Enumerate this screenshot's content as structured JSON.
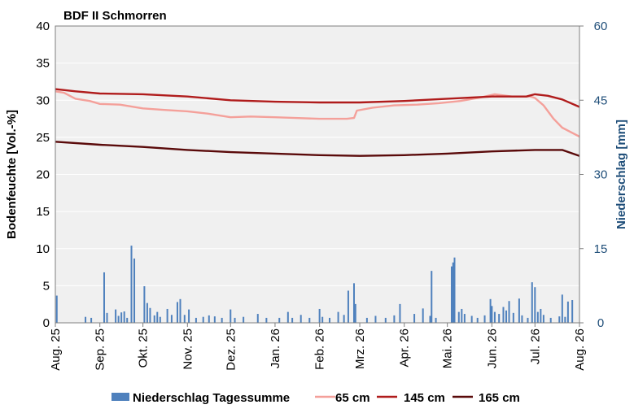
{
  "chart_data": {
    "type": "line",
    "title": "BDF II Schmorren",
    "ylabel": "Bodenfeuchte [Vol.-%]",
    "y2label": "Niederschlag [mm]",
    "ylim": [
      0,
      40
    ],
    "y2lim": [
      0,
      60
    ],
    "yticks": [
      "0",
      "5",
      "10",
      "15",
      "20",
      "25",
      "30",
      "35",
      "40"
    ],
    "y2ticks": [
      "0",
      "15",
      "30",
      "45",
      "60"
    ],
    "xlim": [
      "2025-08-01",
      "2026-08-01"
    ],
    "xticks": [
      {
        "date": "2025-08-01",
        "label": "Aug. 25"
      },
      {
        "date": "2025-09-01",
        "label": "Sep. 25"
      },
      {
        "date": "2025-10-01",
        "label": "Okt. 25"
      },
      {
        "date": "2025-11-01",
        "label": "Nov. 25"
      },
      {
        "date": "2025-12-01",
        "label": "Dez. 25"
      },
      {
        "date": "2026-01-01",
        "label": "Jan. 26"
      },
      {
        "date": "2026-02-01",
        "label": "Feb. 26"
      },
      {
        "date": "2026-03-01",
        "label": "Mrz. 26"
      },
      {
        "date": "2026-04-01",
        "label": "Apr. 26"
      },
      {
        "date": "2026-05-01",
        "label": "Mai. 26"
      },
      {
        "date": "2026-06-01",
        "label": "Jun. 26"
      },
      {
        "date": "2026-07-01",
        "label": "Jul. 26"
      },
      {
        "date": "2026-08-01",
        "label": "Aug. 26"
      }
    ],
    "grid": true,
    "legend_position": "bottom",
    "colors": {
      "plot_bg": "#f0f0f0",
      "grid": "#ffffff",
      "bars": "#4f81bd",
      "right_axis_text": "#1f4e79"
    },
    "series": [
      {
        "name": "Niederschlag Tagessumme",
        "type": "bar",
        "axis": "right",
        "color": "#4f81bd",
        "points": [
          [
            "2025-08-02",
            5.5
          ],
          [
            "2025-08-22",
            1.2
          ],
          [
            "2025-08-26",
            1.0
          ],
          [
            "2025-09-04",
            10.2
          ],
          [
            "2025-09-06",
            2.0
          ],
          [
            "2025-09-12",
            2.7
          ],
          [
            "2025-09-14",
            1.4
          ],
          [
            "2025-09-16",
            2.1
          ],
          [
            "2025-09-18",
            2.3
          ],
          [
            "2025-09-20",
            1.0
          ],
          [
            "2025-09-23",
            15.6
          ],
          [
            "2025-09-25",
            13.0
          ],
          [
            "2025-10-02",
            7.4
          ],
          [
            "2025-10-04",
            4.0
          ],
          [
            "2025-10-06",
            3.0
          ],
          [
            "2025-10-09",
            1.5
          ],
          [
            "2025-10-11",
            2.2
          ],
          [
            "2025-10-13",
            1.2
          ],
          [
            "2025-10-18",
            2.8
          ],
          [
            "2025-10-21",
            1.6
          ],
          [
            "2025-10-25",
            4.2
          ],
          [
            "2025-10-27",
            4.8
          ],
          [
            "2025-10-30",
            1.6
          ],
          [
            "2025-11-02",
            2.7
          ],
          [
            "2025-11-07",
            1.0
          ],
          [
            "2025-11-12",
            1.2
          ],
          [
            "2025-11-16",
            1.5
          ],
          [
            "2025-11-20",
            1.3
          ],
          [
            "2025-11-25",
            1.0
          ],
          [
            "2025-12-01",
            2.7
          ],
          [
            "2025-12-04",
            1.0
          ],
          [
            "2025-12-10",
            1.2
          ],
          [
            "2025-12-20",
            1.8
          ],
          [
            "2025-12-26",
            1.0
          ],
          [
            "2026-01-04",
            1.0
          ],
          [
            "2026-01-10",
            2.2
          ],
          [
            "2026-01-13",
            1.0
          ],
          [
            "2026-01-19",
            1.6
          ],
          [
            "2026-01-25",
            1.0
          ],
          [
            "2026-02-01",
            2.8
          ],
          [
            "2026-02-03",
            1.2
          ],
          [
            "2026-02-08",
            1.0
          ],
          [
            "2026-02-14",
            2.2
          ],
          [
            "2026-02-18",
            1.6
          ],
          [
            "2026-02-21",
            6.5
          ],
          [
            "2026-02-25",
            8.0
          ],
          [
            "2026-02-26",
            3.8
          ],
          [
            "2026-03-06",
            1.0
          ],
          [
            "2026-03-12",
            1.4
          ],
          [
            "2026-03-19",
            1.0
          ],
          [
            "2026-03-25",
            1.5
          ],
          [
            "2026-03-29",
            3.8
          ],
          [
            "2026-04-08",
            1.8
          ],
          [
            "2026-04-14",
            2.9
          ],
          [
            "2026-04-19",
            1.4
          ],
          [
            "2026-04-20",
            10.5
          ],
          [
            "2026-04-23",
            1.0
          ],
          [
            "2026-05-04",
            11.4
          ],
          [
            "2026-05-05",
            12.2
          ],
          [
            "2026-05-06",
            13.2
          ],
          [
            "2026-05-09",
            2.2
          ],
          [
            "2026-05-11",
            2.8
          ],
          [
            "2026-05-13",
            1.8
          ],
          [
            "2026-05-18",
            1.4
          ],
          [
            "2026-05-22",
            1.0
          ],
          [
            "2026-05-27",
            1.5
          ],
          [
            "2026-05-31",
            4.8
          ],
          [
            "2026-06-01",
            3.4
          ],
          [
            "2026-06-03",
            2.2
          ],
          [
            "2026-06-06",
            1.8
          ],
          [
            "2026-06-09",
            3.2
          ],
          [
            "2026-06-11",
            2.5
          ],
          [
            "2026-06-13",
            4.4
          ],
          [
            "2026-06-16",
            2.0
          ],
          [
            "2026-06-20",
            4.9
          ],
          [
            "2026-06-22",
            1.5
          ],
          [
            "2026-06-26",
            1.0
          ],
          [
            "2026-06-29",
            8.2
          ],
          [
            "2026-07-01",
            7.2
          ],
          [
            "2026-07-03",
            2.2
          ],
          [
            "2026-07-05",
            2.8
          ],
          [
            "2026-07-07",
            1.6
          ],
          [
            "2026-07-12",
            1.0
          ],
          [
            "2026-07-18",
            1.3
          ],
          [
            "2026-07-20",
            5.7
          ],
          [
            "2026-07-22",
            1.2
          ],
          [
            "2026-07-24",
            4.3
          ],
          [
            "2026-07-27",
            4.6
          ]
        ]
      },
      {
        "name": "65 cm",
        "type": "line",
        "axis": "left",
        "color": "#f4a09a",
        "points": [
          [
            "2025-08-01",
            31.2
          ],
          [
            "2025-08-07",
            31.0
          ],
          [
            "2025-08-15",
            30.2
          ],
          [
            "2025-08-25",
            29.9
          ],
          [
            "2025-09-01",
            29.5
          ],
          [
            "2025-09-15",
            29.4
          ],
          [
            "2025-10-01",
            28.9
          ],
          [
            "2025-10-15",
            28.7
          ],
          [
            "2025-11-01",
            28.5
          ],
          [
            "2025-11-15",
            28.2
          ],
          [
            "2025-12-01",
            27.7
          ],
          [
            "2025-12-15",
            27.8
          ],
          [
            "2026-01-01",
            27.7
          ],
          [
            "2026-01-15",
            27.6
          ],
          [
            "2026-02-01",
            27.5
          ],
          [
            "2026-02-20",
            27.5
          ],
          [
            "2026-02-25",
            27.6
          ],
          [
            "2026-02-27",
            28.6
          ],
          [
            "2026-03-10",
            29.0
          ],
          [
            "2026-03-25",
            29.3
          ],
          [
            "2026-04-10",
            29.4
          ],
          [
            "2026-04-25",
            29.6
          ],
          [
            "2026-05-10",
            29.9
          ],
          [
            "2026-05-25",
            30.4
          ],
          [
            "2026-06-03",
            30.8
          ],
          [
            "2026-06-15",
            30.5
          ],
          [
            "2026-06-28",
            30.5
          ],
          [
            "2026-07-01",
            30.3
          ],
          [
            "2026-07-07",
            29.3
          ],
          [
            "2026-07-14",
            27.5
          ],
          [
            "2026-07-20",
            26.3
          ],
          [
            "2026-07-27",
            25.6
          ],
          [
            "2026-08-01",
            25.1
          ]
        ]
      },
      {
        "name": "145 cm",
        "type": "line",
        "axis": "left",
        "color": "#b01c1c",
        "points": [
          [
            "2025-08-01",
            31.5
          ],
          [
            "2025-08-15",
            31.2
          ],
          [
            "2025-09-01",
            30.9
          ],
          [
            "2025-10-01",
            30.8
          ],
          [
            "2025-11-01",
            30.5
          ],
          [
            "2025-12-01",
            30.0
          ],
          [
            "2026-01-01",
            29.8
          ],
          [
            "2026-02-01",
            29.7
          ],
          [
            "2026-03-01",
            29.7
          ],
          [
            "2026-04-01",
            29.9
          ],
          [
            "2026-05-01",
            30.2
          ],
          [
            "2026-06-01",
            30.5
          ],
          [
            "2026-06-25",
            30.5
          ],
          [
            "2026-07-01",
            30.8
          ],
          [
            "2026-07-10",
            30.6
          ],
          [
            "2026-07-20",
            30.1
          ],
          [
            "2026-08-01",
            29.1
          ]
        ]
      },
      {
        "name": "165 cm",
        "type": "line",
        "axis": "left",
        "color": "#5a0a0a",
        "points": [
          [
            "2025-08-01",
            24.4
          ],
          [
            "2025-09-01",
            24.0
          ],
          [
            "2025-10-01",
            23.7
          ],
          [
            "2025-11-01",
            23.3
          ],
          [
            "2025-12-01",
            23.0
          ],
          [
            "2026-01-01",
            22.8
          ],
          [
            "2026-02-01",
            22.6
          ],
          [
            "2026-03-01",
            22.5
          ],
          [
            "2026-04-01",
            22.6
          ],
          [
            "2026-05-01",
            22.8
          ],
          [
            "2026-06-01",
            23.1
          ],
          [
            "2026-07-01",
            23.3
          ],
          [
            "2026-07-20",
            23.3
          ],
          [
            "2026-08-01",
            22.5
          ]
        ]
      }
    ]
  }
}
